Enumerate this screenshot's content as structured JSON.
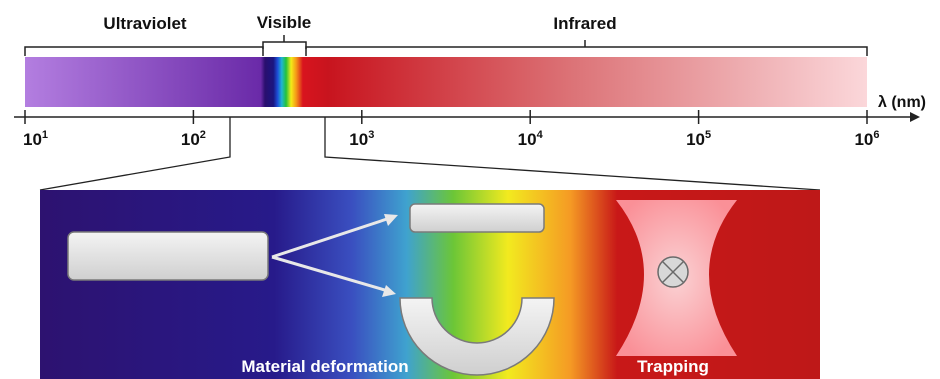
{
  "regions": {
    "ultraviolet": "Ultraviolet",
    "visible": "Visible",
    "infrared": "Infrared"
  },
  "axis": {
    "label": "λ (nm)",
    "ticks": [
      {
        "base": "10",
        "exp": "1"
      },
      {
        "base": "10",
        "exp": "2"
      },
      {
        "base": "10",
        "exp": "3"
      },
      {
        "base": "10",
        "exp": "4"
      },
      {
        "base": "10",
        "exp": "5"
      },
      {
        "base": "10",
        "exp": "6"
      }
    ]
  },
  "inset": {
    "deformation_label": "Material deformation",
    "trapping_label": "Trapping"
  },
  "colors": {
    "uv_start": "#b37ee0",
    "uv_end": "#2a0f6e",
    "ir_start": "#c8141e",
    "ir_end": "#fbd7da",
    "inset_violet": "#2d1270",
    "inset_red": "#c01818",
    "plate_fill": "#e8e8e8",
    "beam_fill": "#ffb9be"
  }
}
